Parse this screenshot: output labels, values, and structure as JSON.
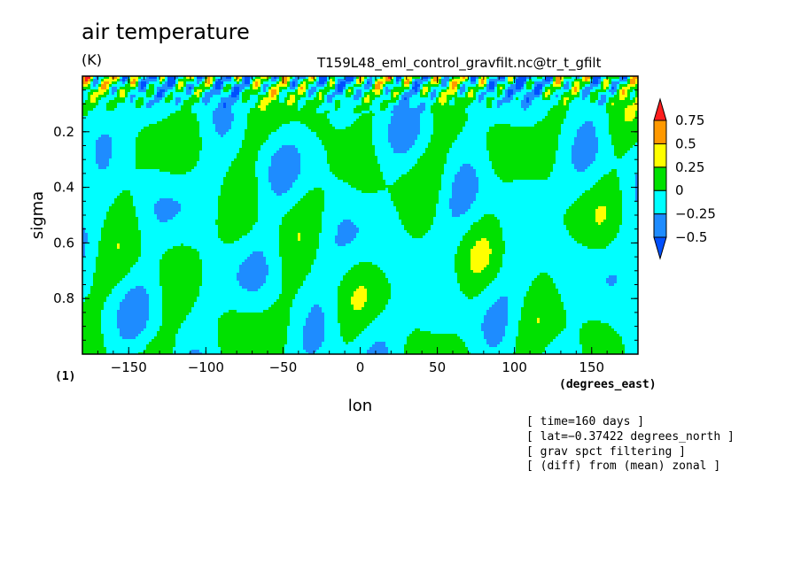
{
  "colors": {
    "neg_050": "#1e8cff",
    "neg_025": "#00ffff",
    "zero_025": "#00e100",
    "pos_025_050": "#ffff00",
    "pos_050_075": "#ff9900",
    "pos_075": "#ff1e1e",
    "below_min": "#0050ff"
  },
  "chart_data": {
    "type": "heatmap",
    "title": "air temperature",
    "units": "(K)",
    "source": "T159L48_eml_control_gravfilt.nc@tr_t_gfilt",
    "xlabel": "lon",
    "xunits": "(degrees_east)",
    "ylabel": "sigma",
    "yunits": "(1)",
    "xlim": [
      -180,
      180
    ],
    "ylim": [
      1.0,
      0.0
    ],
    "xticks": [
      -150,
      -100,
      -50,
      0,
      50,
      100,
      150
    ],
    "xtick_labels": [
      "−150",
      "−100",
      "−50",
      "0",
      "50",
      "100",
      "150"
    ],
    "yticks": [
      0.2,
      0.4,
      0.6,
      0.8
    ],
    "ytick_labels": [
      "0.2",
      "0.4",
      "0.6",
      "0.8"
    ],
    "colorbar": {
      "levels": [
        -0.5,
        -0.25,
        0,
        0.25,
        0.5,
        0.75
      ],
      "labels": [
        "−0.5",
        "−0.25",
        "0",
        "0.25",
        "0.5",
        "0.75"
      ]
    },
    "annotations": [
      "[ time=160 days ]",
      "[ lat=−0.37422 degrees_north ]",
      "[ grav spct filtering ]",
      "[ (diff) from (mean) zonal ]"
    ],
    "grid": false
  }
}
